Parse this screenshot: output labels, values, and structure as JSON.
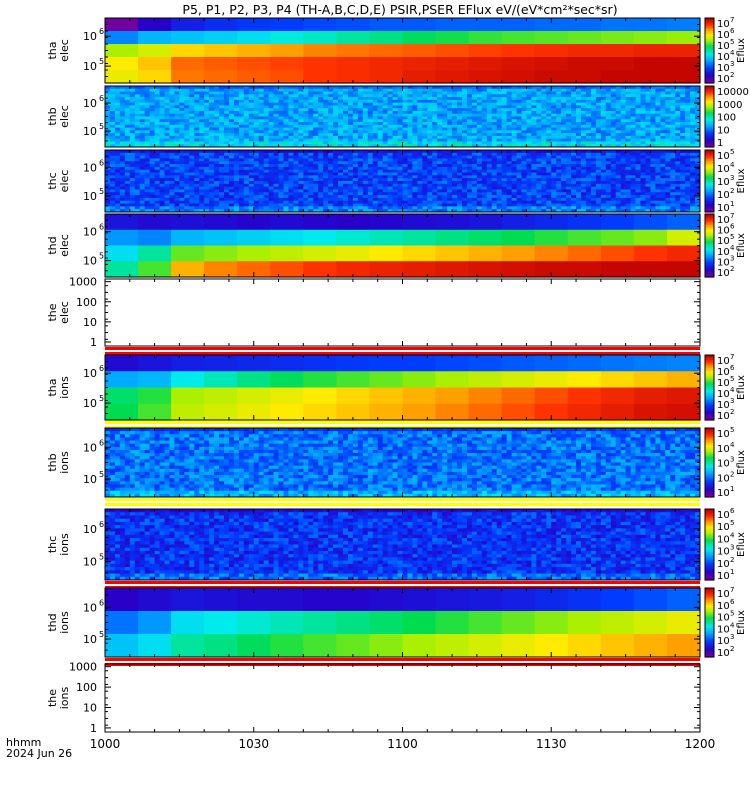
{
  "chart_data": {
    "type": "heatmap",
    "title": "P5, P1, P2, P3, P4 (TH-A,B,C,D,E) PSIR,PSER EFlux eV/(eV*cm²*sec*sr)",
    "x_tick_labels": [
      "1000",
      "1030",
      "1100",
      "1130",
      "1200"
    ],
    "x_corner_label_line1": "hhmm",
    "x_corner_label_line2": "2024 Jun 26",
    "panels": [
      {
        "id": "tha-elec",
        "ylabel_line1": "tha",
        "ylabel_line2": "elec",
        "style": "smooth",
        "y_tick_labels": [
          "10",
          "10"
        ],
        "y_tick_exps": [
          "6",
          "5"
        ],
        "coarse": [
          [
            0,
            0.1,
            0.16,
            0.19,
            0.21,
            0.22,
            0.23,
            0.24,
            0.25,
            0.25,
            0.26,
            0.26,
            0.26,
            0.27,
            0.27,
            0.28,
            0.28,
            0.29
          ],
          [
            0.3,
            0.36,
            0.38,
            0.4,
            0.42,
            0.45,
            0.47,
            0.5,
            0.52,
            0.55,
            0.57,
            0.59,
            0.6,
            0.61,
            0.62,
            0.63,
            0.64,
            0.65
          ],
          [
            0.66,
            0.7,
            0.76,
            0.78,
            0.8,
            0.82,
            0.84,
            0.85,
            0.86,
            0.87,
            0.88,
            0.89,
            0.9,
            0.91,
            0.92,
            0.92,
            0.93,
            0.93
          ],
          [
            0.74,
            0.78,
            0.86,
            0.87,
            0.88,
            0.89,
            0.9,
            0.91,
            0.92,
            0.93,
            0.94,
            0.95,
            0.96,
            0.97,
            0.98,
            0.98,
            0.99,
            0.99
          ],
          [
            0.72,
            0.76,
            0.85,
            0.86,
            0.87,
            0.88,
            0.9,
            0.91,
            0.92,
            0.94,
            0.95,
            0.96,
            0.97,
            0.98,
            0.98,
            0.99,
            0.99,
            0.99
          ]
        ],
        "cbar": {
          "labels": [
            "10",
            "10",
            "10",
            "10",
            "10",
            "10"
          ],
          "exps": [
            "7",
            "6",
            "5",
            "4",
            "3",
            "2"
          ],
          "title": "Eflux"
        }
      },
      {
        "id": "thb-elec",
        "ylabel_line1": "thb",
        "ylabel_line2": "elec",
        "style": "noisy",
        "base": 0.34,
        "edge": 0.42,
        "y_tick_labels": [
          "10",
          "10"
        ],
        "y_tick_exps": [
          "6",
          "5"
        ],
        "cbar": {
          "labels": [
            "10000",
            "1000",
            "100",
            "10",
            "1"
          ],
          "exps": [
            "",
            "",
            "",
            "",
            ""
          ],
          "title": ""
        }
      },
      {
        "id": "thc-elec",
        "ylabel_line1": "thc",
        "ylabel_line2": "elec",
        "style": "noisy",
        "base": 0.22,
        "edge": 0.3,
        "y_tick_labels": [
          "10",
          "10"
        ],
        "y_tick_exps": [
          "6",
          "5"
        ],
        "cbar": {
          "labels": [
            "10",
            "10",
            "10",
            "10",
            "10"
          ],
          "exps": [
            "5",
            "4",
            "3",
            "2",
            "1"
          ],
          "title": "Eflux"
        }
      },
      {
        "id": "thd-elec",
        "ylabel_line1": "thd",
        "ylabel_line2": "elec",
        "style": "smooth",
        "y_tick_labels": [
          "10",
          "10"
        ],
        "y_tick_exps": [
          "6",
          "5"
        ],
        "coarse": [
          [
            0.14,
            0.12,
            0.13,
            0.12,
            0.11,
            0.12,
            0.11,
            0.1,
            0.11,
            0.12,
            0.13,
            0.14,
            0.16,
            0.18,
            0.2,
            0.22,
            0.24,
            0.26
          ],
          [
            0.32,
            0.3,
            0.36,
            0.38,
            0.4,
            0.42,
            0.44,
            0.46,
            0.48,
            0.5,
            0.52,
            0.54,
            0.56,
            0.58,
            0.6,
            0.62,
            0.64,
            0.7
          ],
          [
            0.42,
            0.5,
            0.62,
            0.64,
            0.66,
            0.68,
            0.7,
            0.72,
            0.74,
            0.76,
            0.78,
            0.8,
            0.82,
            0.84,
            0.86,
            0.88,
            0.9,
            0.92
          ],
          [
            0.5,
            0.6,
            0.8,
            0.84,
            0.86,
            0.88,
            0.9,
            0.92,
            0.93,
            0.94,
            0.95,
            0.96,
            0.97,
            0.98,
            0.98,
            0.99,
            0.99,
            0.99
          ]
        ],
        "cbar": {
          "labels": [
            "10",
            "10",
            "10",
            "10",
            "10",
            "10"
          ],
          "exps": [
            "7",
            "6",
            "5",
            "4",
            "3",
            "2"
          ],
          "title": "Eflux"
        }
      },
      {
        "id": "the-elec",
        "ylabel_line1": "the",
        "ylabel_line2": "elec",
        "style": "empty",
        "y_tick_labels": [
          "1000",
          "100",
          "10",
          "1"
        ],
        "y_tick_exps": [
          "",
          "",
          "",
          ""
        ],
        "bottom_stripes": "red"
      },
      {
        "id": "tha-ions",
        "ylabel_line1": "tha",
        "ylabel_line2": "ions",
        "style": "smooth",
        "y_tick_labels": [
          "10",
          "10"
        ],
        "y_tick_exps": [
          "6",
          "5"
        ],
        "coarse": [
          [
            0.12,
            0.14,
            0.16,
            0.17,
            0.18,
            0.19,
            0.2,
            0.21,
            0.22,
            0.22,
            0.23,
            0.24,
            0.25,
            0.26,
            0.27,
            0.28,
            0.29,
            0.3
          ],
          [
            0.34,
            0.36,
            0.44,
            0.48,
            0.52,
            0.55,
            0.58,
            0.6,
            0.62,
            0.64,
            0.66,
            0.68,
            0.7,
            0.72,
            0.74,
            0.76,
            0.78,
            0.8
          ],
          [
            0.54,
            0.58,
            0.66,
            0.68,
            0.7,
            0.72,
            0.74,
            0.76,
            0.78,
            0.8,
            0.82,
            0.84,
            0.86,
            0.88,
            0.9,
            0.92,
            0.94,
            0.95
          ],
          [
            0.56,
            0.6,
            0.68,
            0.7,
            0.72,
            0.74,
            0.76,
            0.78,
            0.8,
            0.82,
            0.84,
            0.86,
            0.88,
            0.9,
            0.92,
            0.94,
            0.96,
            0.97
          ]
        ],
        "bottom_stripes": "yellow",
        "cbar": {
          "labels": [
            "10",
            "10",
            "10",
            "10",
            "10",
            "10"
          ],
          "exps": [
            "7",
            "6",
            "5",
            "4",
            "3",
            "2"
          ],
          "title": "Eflux"
        }
      },
      {
        "id": "thb-ions",
        "ylabel_line1": "thb",
        "ylabel_line2": "ions",
        "style": "noisy",
        "base": 0.28,
        "edge": 0.36,
        "y_tick_labels": [
          "10",
          "10"
        ],
        "y_tick_exps": [
          "6",
          "5"
        ],
        "bottom_stripes": "yellow",
        "cbar": {
          "labels": [
            "10",
            "10",
            "10",
            "10",
            "10"
          ],
          "exps": [
            "5",
            "4",
            "3",
            "2",
            "1"
          ],
          "title": "Eflux"
        }
      },
      {
        "id": "thc-ions",
        "ylabel_line1": "thc",
        "ylabel_line2": "ions",
        "style": "noisy",
        "base": 0.2,
        "edge": 0.27,
        "y_tick_labels": [
          "10",
          "10"
        ],
        "y_tick_exps": [
          "6",
          "5"
        ],
        "bottom_stripes": "red",
        "cbar": {
          "labels": [
            "10",
            "10",
            "10",
            "10",
            "10",
            "10"
          ],
          "exps": [
            "6",
            "5",
            "4",
            "3",
            "2",
            "1"
          ],
          "title": "Eflux"
        }
      },
      {
        "id": "thd-ions",
        "ylabel_line1": "thd",
        "ylabel_line2": "ions",
        "style": "smooth",
        "y_tick_labels": [
          "10",
          "10"
        ],
        "y_tick_exps": [
          "6",
          "5"
        ],
        "coarse": [
          [
            0.1,
            0.12,
            0.14,
            0.13,
            0.12,
            0.12,
            0.11,
            0.11,
            0.12,
            0.13,
            0.14,
            0.15,
            0.16,
            0.18,
            0.2,
            0.22,
            0.24,
            0.26
          ],
          [
            0.28,
            0.32,
            0.42,
            0.44,
            0.46,
            0.48,
            0.5,
            0.52,
            0.54,
            0.56,
            0.58,
            0.6,
            0.62,
            0.64,
            0.66,
            0.68,
            0.7,
            0.72
          ],
          [
            0.38,
            0.42,
            0.5,
            0.52,
            0.55,
            0.58,
            0.6,
            0.62,
            0.64,
            0.66,
            0.68,
            0.7,
            0.72,
            0.74,
            0.76,
            0.78,
            0.8,
            0.82
          ]
        ],
        "bottom_stripes": "red",
        "cbar": {
          "labels": [
            "10",
            "10",
            "10",
            "10",
            "10",
            "10"
          ],
          "exps": [
            "7",
            "6",
            "5",
            "4",
            "3",
            "2"
          ],
          "title": "Eflux"
        }
      },
      {
        "id": "the-ions",
        "ylabel_line1": "the",
        "ylabel_line2": "ions",
        "style": "empty",
        "y_tick_labels": [
          "1000",
          "100",
          "10",
          "1"
        ],
        "y_tick_exps": [
          "",
          "",
          "",
          ""
        ]
      }
    ]
  }
}
